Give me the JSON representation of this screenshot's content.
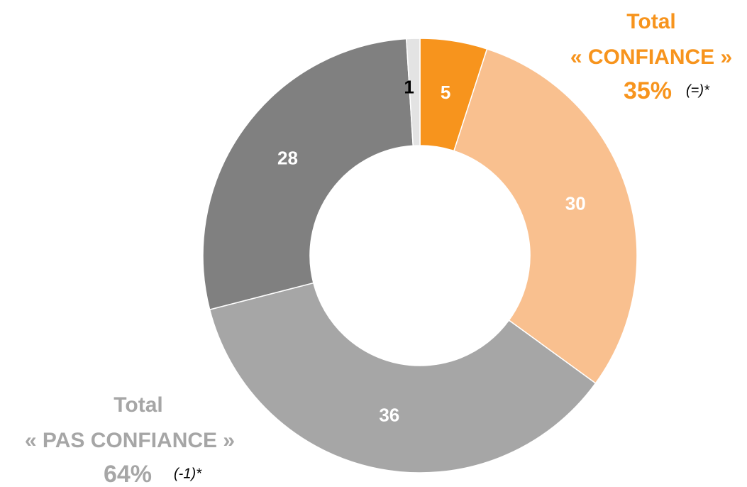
{
  "chart_data": {
    "type": "donut",
    "values": [
      5,
      30,
      36,
      28,
      1
    ],
    "colors": [
      "#f7941d",
      "#f9c08f",
      "#a6a6a6",
      "#808080",
      "#e3e3e3"
    ],
    "label_colors": [
      "#ffffff",
      "#ffffff",
      "#ffffff",
      "#ffffff",
      "#000000"
    ],
    "annotations": [
      {
        "title": "Total",
        "subtitle": "« CONFIANCE »",
        "value_text": "35%",
        "note": "(=)*",
        "color": "#f7941d"
      },
      {
        "title": "Total",
        "subtitle": "« PAS CONFIANCE »",
        "value_text": "64%",
        "note": "(-1)*",
        "color": "#a6a6a6"
      }
    ]
  }
}
